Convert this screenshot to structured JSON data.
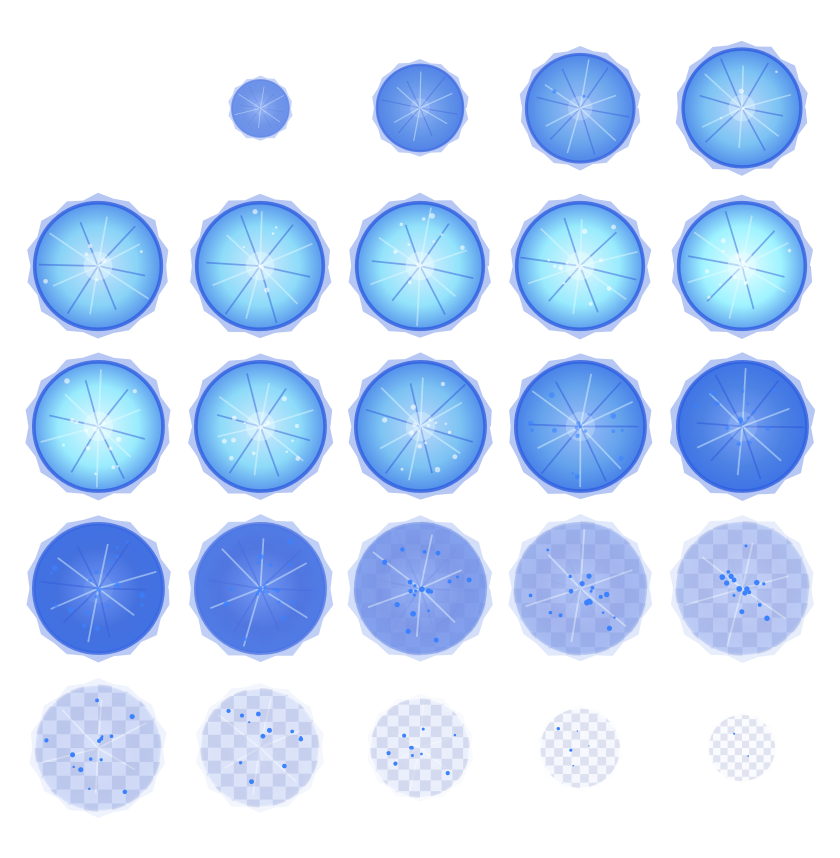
{
  "sprite_sheet": {
    "columns": 5,
    "rows": 5,
    "background": "#ffffff",
    "checker_colors": [
      "#ffffff",
      "#cfd3e6"
    ],
    "palette": {
      "outer_blue": "#2f5fe0",
      "rim_blue": "#4f7df0",
      "deep_blue": "#2a52d8",
      "cyan": "#9ff3ff",
      "bright_cyan": "#e8fdff",
      "sparkle": "#3b82ff"
    },
    "frames": [
      {
        "row": 0,
        "col": 1,
        "size": 0.45,
        "glow": 0.2,
        "opacity": 0.75,
        "ghost": 0,
        "sparkles": 0
      },
      {
        "row": 0,
        "col": 2,
        "size": 0.68,
        "glow": 0.35,
        "opacity": 0.9,
        "ghost": 0,
        "sparkles": 0
      },
      {
        "row": 0,
        "col": 3,
        "size": 0.85,
        "glow": 0.5,
        "opacity": 0.95,
        "ghost": 0,
        "sparkles": 2
      },
      {
        "row": 0,
        "col": 4,
        "size": 0.93,
        "glow": 0.7,
        "opacity": 1,
        "ghost": 0,
        "sparkles": 4
      },
      {
        "row": 1,
        "col": 0,
        "size": 1.0,
        "glow": 0.8,
        "opacity": 1,
        "ghost": 0,
        "sparkles": 6
      },
      {
        "row": 1,
        "col": 1,
        "size": 1.0,
        "glow": 0.85,
        "opacity": 1,
        "ghost": 0,
        "sparkles": 8
      },
      {
        "row": 1,
        "col": 2,
        "size": 1.0,
        "glow": 0.9,
        "opacity": 1,
        "ghost": 0,
        "sparkles": 10
      },
      {
        "row": 1,
        "col": 3,
        "size": 1.0,
        "glow": 0.95,
        "opacity": 1,
        "ghost": 0,
        "sparkles": 12
      },
      {
        "row": 1,
        "col": 4,
        "size": 1.0,
        "glow": 1.0,
        "opacity": 1,
        "ghost": 0,
        "sparkles": 14
      },
      {
        "row": 2,
        "col": 0,
        "size": 1.02,
        "glow": 0.95,
        "opacity": 1,
        "ghost": 0,
        "sparkles": 14
      },
      {
        "row": 2,
        "col": 1,
        "size": 1.02,
        "glow": 0.85,
        "opacity": 1,
        "ghost": 0,
        "sparkles": 14
      },
      {
        "row": 2,
        "col": 2,
        "size": 1.02,
        "glow": 0.7,
        "opacity": 1,
        "ghost": 0,
        "sparkles": 16
      },
      {
        "row": 2,
        "col": 3,
        "size": 1.02,
        "glow": 0.5,
        "opacity": 1,
        "ghost": 0,
        "sparkles": 18
      },
      {
        "row": 2,
        "col": 4,
        "size": 1.02,
        "glow": 0.3,
        "opacity": 1,
        "ghost": 0,
        "sparkles": 18
      },
      {
        "row": 3,
        "col": 0,
        "size": 1.02,
        "glow": 0.15,
        "opacity": 0.95,
        "ghost": 0,
        "sparkles": 20
      },
      {
        "row": 3,
        "col": 1,
        "size": 1.02,
        "glow": 0.08,
        "opacity": 0.85,
        "ghost": 0.2,
        "sparkles": 20
      },
      {
        "row": 3,
        "col": 2,
        "size": 1.02,
        "glow": 0.05,
        "opacity": 0.6,
        "ghost": 0.55,
        "sparkles": 20
      },
      {
        "row": 3,
        "col": 3,
        "size": 1.02,
        "glow": 0.0,
        "opacity": 0.42,
        "ghost": 0.8,
        "sparkles": 18
      },
      {
        "row": 3,
        "col": 4,
        "size": 1.02,
        "glow": 0.0,
        "opacity": 0.32,
        "ghost": 0.9,
        "sparkles": 16
      },
      {
        "row": 4,
        "col": 0,
        "size": 0.96,
        "glow": 0.0,
        "opacity": 0.22,
        "ghost": 1,
        "sparkles": 14
      },
      {
        "row": 4,
        "col": 1,
        "size": 0.9,
        "glow": 0.0,
        "opacity": 0.16,
        "ghost": 1,
        "sparkles": 12
      },
      {
        "row": 4,
        "col": 2,
        "size": 0.75,
        "glow": 0.0,
        "opacity": 0.09,
        "ghost": 1,
        "sparkles": 10
      },
      {
        "row": 4,
        "col": 3,
        "size": 0.6,
        "glow": 0.0,
        "opacity": 0.04,
        "ghost": 1,
        "sparkles": 5
      },
      {
        "row": 4,
        "col": 4,
        "size": 0.5,
        "glow": 0.0,
        "opacity": 0.02,
        "ghost": 1,
        "sparkles": 2
      }
    ]
  }
}
